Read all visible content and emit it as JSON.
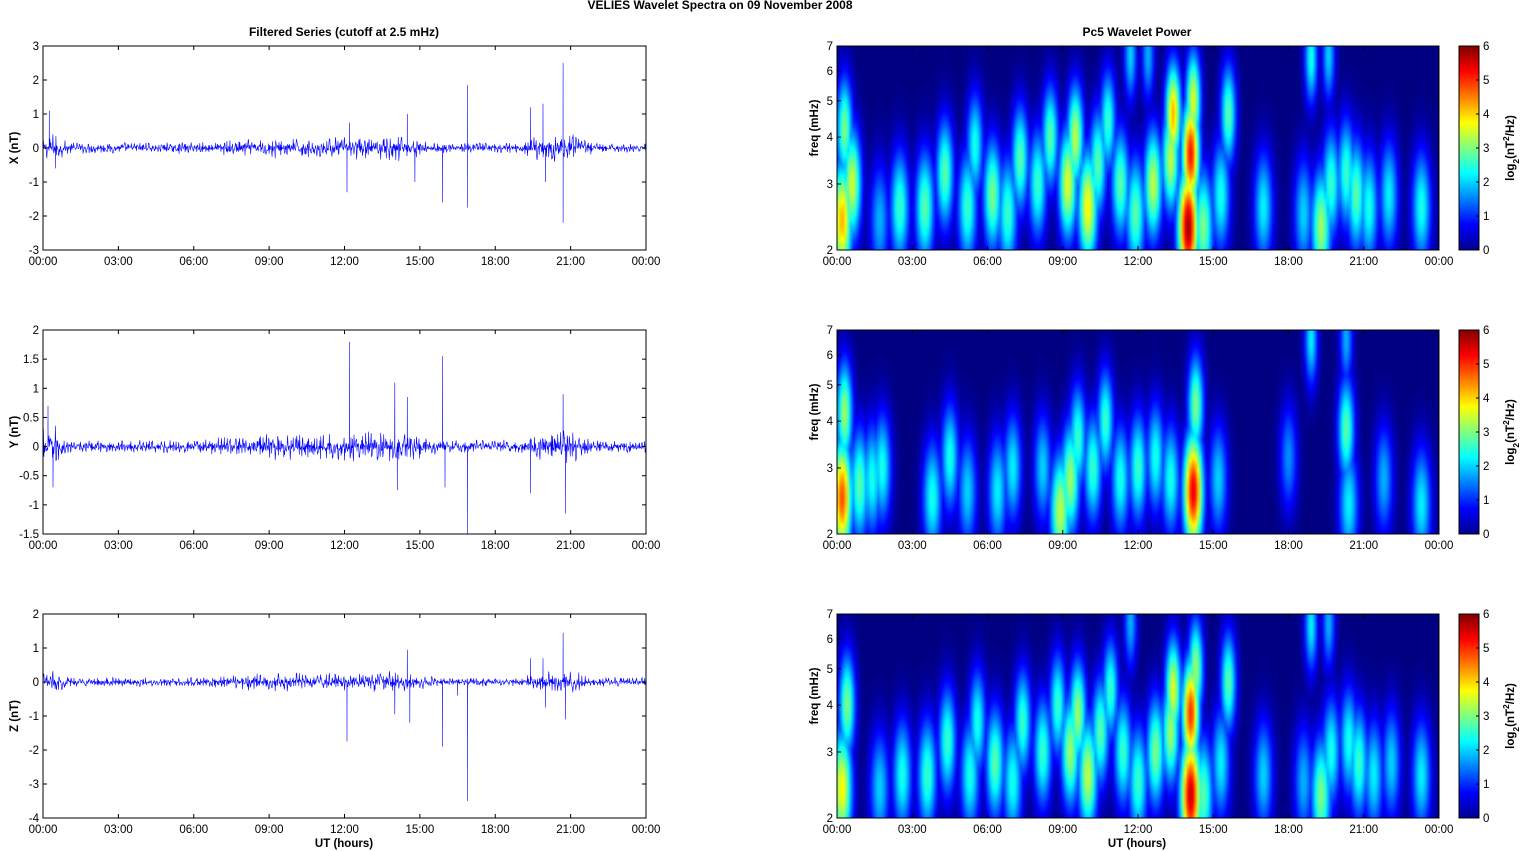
{
  "figure": {
    "title": "VELIES Wavelet Spectra on 09 November  2008",
    "left_column_title": "Filtered Series (cutoff at 2.5 mHz)",
    "right_column_title": "Pc5 Wavelet Power",
    "x_axis_label": "UT (hours)"
  },
  "colors": {
    "trace": "#0000ff",
    "spectrogram_background": "#00008f",
    "colormap": "jet"
  },
  "chart_data": [
    {
      "type": "line",
      "panel": "X",
      "ylabel": "X (nT)",
      "ylim": [
        -3,
        3
      ],
      "yticks": [
        -3,
        -2,
        -1,
        0,
        1,
        2,
        3
      ],
      "xlim_hours": [
        0,
        24
      ],
      "xticks": [
        "00:00",
        "03:00",
        "06:00",
        "09:00",
        "12:00",
        "15:00",
        "18:00",
        "21:00",
        "00:00"
      ],
      "series": [
        {
          "noise": [
            [
              0,
              0.25
            ],
            [
              0.4,
              0.45
            ],
            [
              1,
              0.18
            ],
            [
              6,
              0.18
            ],
            [
              9,
              0.32
            ],
            [
              11,
              0.3
            ],
            [
              14,
              0.42
            ],
            [
              16,
              0.15
            ],
            [
              19,
              0.18
            ],
            [
              19.6,
              0.4
            ],
            [
              20.8,
              0.55
            ],
            [
              22,
              0.15
            ],
            [
              24,
              0.15
            ]
          ],
          "events": [
            [
              0.25,
              1.1
            ],
            [
              0.5,
              -0.6
            ],
            [
              12.1,
              -1.3
            ],
            [
              12.2,
              0.75
            ],
            [
              14.5,
              1.0
            ],
            [
              14.8,
              -1.0
            ],
            [
              15.9,
              -1.6
            ],
            [
              16.9,
              1.85
            ],
            [
              16.9,
              -1.75
            ],
            [
              19.4,
              1.2
            ],
            [
              19.9,
              1.3
            ],
            [
              20.0,
              -1.0
            ],
            [
              20.7,
              2.5
            ],
            [
              20.7,
              -2.2
            ]
          ]
        }
      ]
    },
    {
      "type": "line",
      "panel": "Y",
      "ylabel": "Y (nT)",
      "ylim": [
        -1.5,
        2
      ],
      "yticks": [
        -1.5,
        -1,
        -0.5,
        0,
        0.5,
        1,
        1.5,
        2
      ],
      "xlim_hours": [
        0,
        24
      ],
      "xticks": [
        "00:00",
        "03:00",
        "06:00",
        "09:00",
        "12:00",
        "15:00",
        "18:00",
        "21:00",
        "00:00"
      ],
      "series": [
        {
          "noise": [
            [
              0,
              0.35
            ],
            [
              0.5,
              0.4
            ],
            [
              1,
              0.12
            ],
            [
              6,
              0.12
            ],
            [
              9,
              0.25
            ],
            [
              11,
              0.22
            ],
            [
              14,
              0.3
            ],
            [
              16,
              0.12
            ],
            [
              19,
              0.12
            ],
            [
              19.6,
              0.25
            ],
            [
              21,
              0.3
            ],
            [
              22,
              0.12
            ],
            [
              24,
              0.12
            ]
          ],
          "events": [
            [
              0.2,
              0.7
            ],
            [
              0.4,
              -0.7
            ],
            [
              12.2,
              1.8
            ],
            [
              14.0,
              1.1
            ],
            [
              14.1,
              -0.75
            ],
            [
              14.5,
              0.85
            ],
            [
              15.9,
              1.55
            ],
            [
              16.0,
              -0.7
            ],
            [
              16.9,
              -1.5
            ],
            [
              19.4,
              -0.8
            ],
            [
              20.7,
              0.9
            ],
            [
              20.8,
              -1.15
            ]
          ]
        }
      ]
    },
    {
      "type": "line",
      "panel": "Z",
      "ylabel": "Z (nT)",
      "ylim": [
        -4,
        2
      ],
      "yticks": [
        -4,
        -3,
        -2,
        -1,
        0,
        1,
        2
      ],
      "xlim_hours": [
        0,
        24
      ],
      "xticks": [
        "00:00",
        "03:00",
        "06:00",
        "09:00",
        "12:00",
        "15:00",
        "18:00",
        "21:00",
        "00:00"
      ],
      "series": [
        {
          "noise": [
            [
              0,
              0.25
            ],
            [
              0.5,
              0.35
            ],
            [
              1,
              0.15
            ],
            [
              6,
              0.15
            ],
            [
              9,
              0.3
            ],
            [
              11,
              0.25
            ],
            [
              14,
              0.35
            ],
            [
              16,
              0.12
            ],
            [
              19,
              0.15
            ],
            [
              19.6,
              0.3
            ],
            [
              20.8,
              0.4
            ],
            [
              22,
              0.15
            ],
            [
              24,
              0.15
            ]
          ],
          "events": [
            [
              12.1,
              -1.75
            ],
            [
              14.0,
              -0.95
            ],
            [
              14.5,
              0.95
            ],
            [
              14.6,
              -1.2
            ],
            [
              15.9,
              -1.9
            ],
            [
              16.9,
              -3.5
            ],
            [
              16.5,
              -0.4
            ],
            [
              19.4,
              0.7
            ],
            [
              19.9,
              0.7
            ],
            [
              20.0,
              -0.75
            ],
            [
              20.7,
              1.45
            ],
            [
              20.8,
              -1.1
            ]
          ]
        }
      ]
    },
    {
      "type": "heatmap",
      "panel": "X",
      "ylabel": "freq (mHz)",
      "y_scale": "log",
      "ylim": [
        2,
        7
      ],
      "yticks": [
        2,
        3,
        4,
        5,
        6,
        7
      ],
      "xlim_hours": [
        0,
        24
      ],
      "xticks": [
        "00:00",
        "03:00",
        "06:00",
        "09:00",
        "12:00",
        "15:00",
        "18:00",
        "21:00",
        "00:00"
      ],
      "colorbar": {
        "label": "log2(nT2/Hz)",
        "range": [
          0,
          6
        ],
        "ticks": [
          0,
          1,
          2,
          3,
          4,
          5,
          6
        ]
      },
      "blobs": [
        [
          0.2,
          2.4,
          4.2
        ],
        [
          0.3,
          4.2,
          3.0
        ],
        [
          0.6,
          3.0,
          3.5
        ],
        [
          1.7,
          2.4,
          1.8
        ],
        [
          2.5,
          2.6,
          2.6
        ],
        [
          3.5,
          2.6,
          2.8
        ],
        [
          4.3,
          3.2,
          2.8
        ],
        [
          5.2,
          2.6,
          2.6
        ],
        [
          5.5,
          3.8,
          2.4
        ],
        [
          6.2,
          2.8,
          3.0
        ],
        [
          6.8,
          2.5,
          2.6
        ],
        [
          7.3,
          3.5,
          2.8
        ],
        [
          8.0,
          3.0,
          2.6
        ],
        [
          8.5,
          4.0,
          2.8
        ],
        [
          9.2,
          3.0,
          3.6
        ],
        [
          9.5,
          4.0,
          3.4
        ],
        [
          10.0,
          2.6,
          3.8
        ],
        [
          10.4,
          3.4,
          2.8
        ],
        [
          10.8,
          4.4,
          2.6
        ],
        [
          11.3,
          3.0,
          2.8
        ],
        [
          11.9,
          2.5,
          2.8
        ],
        [
          12.6,
          3.0,
          3.4
        ],
        [
          13.3,
          3.5,
          3.4
        ],
        [
          13.4,
          4.6,
          4.2
        ],
        [
          14.0,
          2.3,
          5.8
        ],
        [
          14.1,
          3.6,
          5.2
        ],
        [
          14.2,
          5.0,
          3.6
        ],
        [
          14.6,
          2.3,
          3.0
        ],
        [
          15.6,
          4.6,
          2.8
        ],
        [
          15.3,
          2.8,
          2.4
        ],
        [
          17.0,
          2.6,
          2.2
        ],
        [
          18.6,
          2.5,
          2.0
        ],
        [
          19.3,
          2.3,
          3.2
        ],
        [
          19.7,
          3.0,
          2.6
        ],
        [
          20.3,
          3.2,
          2.6
        ],
        [
          20.7,
          2.8,
          2.8
        ],
        [
          21.2,
          2.6,
          2.4
        ],
        [
          22.0,
          2.8,
          2.2
        ],
        [
          23.3,
          2.6,
          2.4
        ],
        [
          18.9,
          6.5,
          2.4
        ],
        [
          19.6,
          6.6,
          2.0
        ],
        [
          11.7,
          6.6,
          2.0
        ],
        [
          12.4,
          6.6,
          1.8
        ]
      ]
    },
    {
      "type": "heatmap",
      "panel": "Y",
      "ylabel": "freq (mHz)",
      "y_scale": "log",
      "ylim": [
        2,
        7
      ],
      "yticks": [
        2,
        3,
        4,
        5,
        6,
        7
      ],
      "xlim_hours": [
        0,
        24
      ],
      "xticks": [
        "00:00",
        "03:00",
        "06:00",
        "09:00",
        "12:00",
        "15:00",
        "18:00",
        "21:00",
        "00:00"
      ],
      "colorbar": {
        "label": "log2(nT2/Hz)",
        "range": [
          0,
          6
        ],
        "ticks": [
          0,
          1,
          2,
          3,
          4,
          5,
          6
        ]
      },
      "blobs": [
        [
          0.2,
          2.5,
          4.8
        ],
        [
          0.3,
          4.2,
          3.2
        ],
        [
          0.9,
          2.7,
          2.8
        ],
        [
          1.4,
          2.8,
          2.4
        ],
        [
          1.8,
          3.0,
          2.4
        ],
        [
          3.8,
          2.5,
          2.4
        ],
        [
          4.5,
          3.2,
          2.4
        ],
        [
          5.2,
          2.6,
          2.0
        ],
        [
          6.4,
          2.6,
          2.2
        ],
        [
          7.0,
          3.0,
          2.2
        ],
        [
          8.2,
          3.0,
          2.0
        ],
        [
          8.9,
          2.3,
          3.4
        ],
        [
          9.3,
          2.8,
          3.2
        ],
        [
          9.6,
          3.6,
          2.6
        ],
        [
          10.2,
          3.0,
          2.6
        ],
        [
          10.7,
          4.0,
          2.6
        ],
        [
          11.3,
          2.8,
          2.4
        ],
        [
          12.0,
          3.0,
          2.6
        ],
        [
          12.7,
          3.2,
          2.4
        ],
        [
          13.3,
          2.8,
          2.4
        ],
        [
          14.2,
          2.6,
          5.4
        ],
        [
          14.3,
          4.4,
          3.0
        ],
        [
          15.2,
          2.8,
          2.0
        ],
        [
          20.3,
          3.8,
          2.8
        ],
        [
          20.4,
          2.4,
          2.2
        ],
        [
          21.8,
          2.8,
          1.8
        ],
        [
          23.3,
          2.4,
          2.2
        ],
        [
          18.9,
          6.6,
          2.2
        ],
        [
          20.3,
          6.6,
          1.8
        ],
        [
          18.0,
          3.2,
          1.6
        ]
      ]
    },
    {
      "type": "heatmap",
      "panel": "Z",
      "ylabel": "freq (mHz)",
      "y_scale": "log",
      "ylim": [
        2,
        7
      ],
      "yticks": [
        2,
        3,
        4,
        5,
        6,
        7
      ],
      "xlim_hours": [
        0,
        24
      ],
      "xticks": [
        "00:00",
        "03:00",
        "06:00",
        "09:00",
        "12:00",
        "15:00",
        "18:00",
        "21:00",
        "00:00"
      ],
      "colorbar": {
        "label": "log2(nT2/Hz)",
        "range": [
          0,
          6
        ],
        "ticks": [
          0,
          1,
          2,
          3,
          4,
          5,
          6
        ]
      },
      "blobs": [
        [
          0.2,
          2.4,
          3.8
        ],
        [
          0.4,
          4.0,
          3.0
        ],
        [
          1.7,
          2.4,
          2.0
        ],
        [
          2.6,
          2.6,
          2.4
        ],
        [
          3.6,
          2.6,
          2.6
        ],
        [
          4.4,
          3.2,
          2.6
        ],
        [
          5.3,
          2.6,
          2.4
        ],
        [
          5.6,
          3.6,
          2.4
        ],
        [
          6.3,
          2.8,
          2.8
        ],
        [
          7.0,
          2.5,
          2.4
        ],
        [
          7.4,
          3.6,
          2.6
        ],
        [
          8.2,
          3.0,
          2.6
        ],
        [
          8.8,
          4.0,
          2.6
        ],
        [
          9.3,
          3.0,
          3.2
        ],
        [
          9.6,
          3.8,
          3.2
        ],
        [
          10.0,
          2.6,
          3.4
        ],
        [
          10.5,
          3.4,
          2.8
        ],
        [
          10.9,
          4.4,
          2.6
        ],
        [
          11.4,
          3.0,
          2.6
        ],
        [
          12.0,
          2.5,
          2.6
        ],
        [
          12.7,
          3.0,
          3.0
        ],
        [
          13.3,
          3.4,
          3.2
        ],
        [
          13.4,
          4.4,
          3.6
        ],
        [
          14.1,
          2.3,
          5.6
        ],
        [
          14.1,
          3.8,
          5.0
        ],
        [
          14.3,
          5.0,
          3.2
        ],
        [
          14.6,
          2.3,
          2.8
        ],
        [
          15.6,
          4.6,
          2.8
        ],
        [
          15.3,
          2.8,
          2.2
        ],
        [
          17.0,
          2.6,
          2.0
        ],
        [
          18.6,
          2.5,
          1.8
        ],
        [
          19.3,
          2.3,
          3.0
        ],
        [
          19.7,
          3.0,
          2.4
        ],
        [
          20.4,
          3.2,
          2.4
        ],
        [
          20.8,
          2.8,
          2.6
        ],
        [
          21.4,
          2.6,
          2.2
        ],
        [
          22.1,
          2.8,
          2.0
        ],
        [
          23.3,
          2.6,
          2.2
        ],
        [
          18.9,
          6.5,
          2.2
        ],
        [
          19.6,
          6.6,
          1.8
        ],
        [
          11.7,
          6.6,
          1.8
        ]
      ]
    }
  ]
}
